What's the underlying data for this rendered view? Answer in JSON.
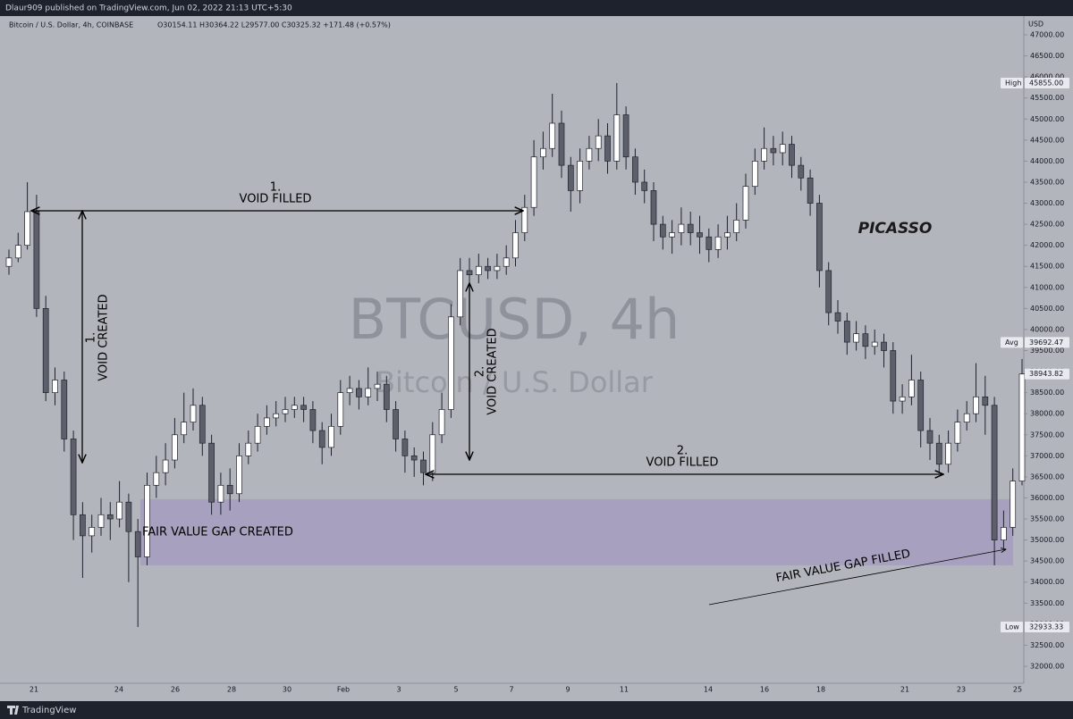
{
  "header": {
    "publisher": "Dlaur909 published on TradingView.com, Jun 02, 2022 21:13 UTC+5:30"
  },
  "footer": {
    "brand": "TradingView"
  },
  "chart_data": {
    "type": "candlestick",
    "legend": {
      "symbol": "Bitcoin / U.S. Dollar, 4h, COINBASE",
      "ohlc": "O30154.11 H30364.22 L29577.00 C30325.32 +171.48 (+0.57%)"
    },
    "watermark": {
      "title": "BTCUSD, 4h",
      "subtitle": "Bitcoin / U.S. Dollar"
    },
    "y_axis_label": "USD",
    "up_color": "#ffffff",
    "down_color": "#5d606b",
    "wick_color": "#1e222d",
    "open": [
      41500,
      41700,
      42000,
      42800,
      40500,
      38500,
      38800,
      37400,
      35600,
      35100,
      35300,
      35600,
      35500,
      35900,
      35200,
      34600,
      36300,
      36600,
      36900,
      37500,
      37800,
      38200,
      37300,
      35900,
      36300,
      36100,
      37000,
      37300,
      37700,
      37900,
      38000,
      38100,
      38200,
      38100,
      37600,
      37200,
      37700,
      38500,
      38600,
      38400,
      38600,
      38700,
      38100,
      37400,
      37000,
      36900,
      36600,
      37500,
      38100,
      40300,
      41400,
      41300,
      41500,
      41400,
      41500,
      41700,
      42300,
      42900,
      44100,
      44300,
      44900,
      43900,
      43300,
      44000,
      44300,
      44600,
      44000,
      45100,
      44100,
      43500,
      43300,
      42500,
      42200,
      42300,
      42500,
      42300,
      42200,
      41900,
      42200,
      42300,
      42600,
      43400,
      44000,
      44300,
      44200,
      44400,
      43900,
      43600,
      43000,
      41400,
      40400,
      40200,
      39700,
      39900,
      39600,
      39700,
      39500,
      38300,
      38400,
      38800,
      37600,
      37300,
      36800,
      37300,
      37800,
      38000,
      38400,
      38200,
      35000,
      35300,
      36400
    ],
    "high": [
      41900,
      42300,
      43500,
      43200,
      40800,
      39100,
      39000,
      37600,
      35900,
      35600,
      36000,
      35900,
      36400,
      36100,
      35500,
      36600,
      37000,
      37300,
      37900,
      38500,
      38600,
      38400,
      37500,
      36600,
      36700,
      37300,
      37600,
      38000,
      38200,
      38300,
      38400,
      38400,
      38400,
      38300,
      37800,
      38000,
      38800,
      38900,
      38800,
      39100,
      39000,
      38900,
      38300,
      37600,
      37200,
      37100,
      37800,
      38500,
      40600,
      41700,
      41700,
      41800,
      41700,
      41800,
      42000,
      42600,
      43200,
      44500,
      44700,
      45600,
      45200,
      44100,
      44300,
      44600,
      45000,
      44900,
      45855,
      45300,
      44300,
      43800,
      43500,
      42700,
      42600,
      42900,
      42800,
      42700,
      42400,
      42500,
      42700,
      43000,
      43700,
      44300,
      44800,
      44600,
      44700,
      44600,
      44100,
      43800,
      43200,
      41600,
      40700,
      40400,
      40200,
      40100,
      40000,
      39900,
      39700,
      38700,
      39400,
      39000,
      37900,
      37500,
      37600,
      38100,
      38300,
      39200,
      38900,
      38400,
      35700,
      36700,
      39300
    ],
    "low": [
      41300,
      41600,
      41900,
      40300,
      38300,
      38200,
      37100,
      35000,
      34100,
      34700,
      35100,
      35000,
      35300,
      34000,
      32933,
      34400,
      36000,
      36300,
      36700,
      37300,
      37600,
      37000,
      35600,
      35600,
      35700,
      35900,
      36800,
      37100,
      37500,
      37700,
      37800,
      37900,
      37800,
      37300,
      36800,
      37000,
      37500,
      38200,
      38100,
      38200,
      38300,
      37800,
      37100,
      36600,
      36500,
      36300,
      36400,
      37300,
      37900,
      40100,
      41000,
      41100,
      41200,
      41200,
      41300,
      41500,
      42100,
      42700,
      43800,
      44100,
      43600,
      42800,
      43000,
      43800,
      44000,
      43700,
      43800,
      43800,
      43200,
      43000,
      42100,
      41900,
      41800,
      42000,
      42000,
      41800,
      41600,
      41700,
      41900,
      42100,
      42400,
      43200,
      43800,
      43900,
      43900,
      43600,
      43300,
      42700,
      41000,
      40100,
      39900,
      39400,
      39500,
      39300,
      39400,
      39100,
      38000,
      38000,
      38200,
      37200,
      36900,
      36600,
      36600,
      37100,
      37600,
      37800,
      37500,
      34400,
      34800,
      35100,
      36300
    ],
    "close": [
      41700,
      42000,
      42800,
      40500,
      38500,
      38800,
      37400,
      35600,
      35100,
      35300,
      35600,
      35500,
      35900,
      35200,
      34600,
      36300,
      36600,
      36900,
      37500,
      37800,
      38200,
      37300,
      35900,
      36300,
      36100,
      37000,
      37300,
      37700,
      37900,
      38000,
      38100,
      38200,
      38100,
      37600,
      37200,
      37700,
      38500,
      38600,
      38400,
      38600,
      38700,
      38100,
      37400,
      37000,
      36900,
      36600,
      37500,
      38100,
      40300,
      41400,
      41300,
      41500,
      41400,
      41500,
      41700,
      42300,
      42900,
      44100,
      44300,
      44900,
      43900,
      43300,
      44000,
      44300,
      44600,
      44000,
      45100,
      44100,
      43500,
      43300,
      42500,
      42200,
      42300,
      42500,
      42300,
      42200,
      41900,
      42200,
      42300,
      42600,
      43400,
      44000,
      44300,
      44200,
      44400,
      43900,
      43600,
      43000,
      41400,
      40400,
      40200,
      39700,
      39900,
      39600,
      39700,
      39500,
      38300,
      38400,
      38800,
      37600,
      37300,
      36800,
      37300,
      37800,
      38000,
      38400,
      38200,
      35000,
      35300,
      36400,
      38943.82
    ],
    "x_labels": [
      "21",
      "24",
      "26",
      "28",
      "30",
      "Feb",
      "3",
      "5",
      "7",
      "9",
      "11",
      "14",
      "16",
      "18",
      "21",
      "23",
      "25"
    ],
    "ylim": [
      32000,
      47000
    ],
    "yticks": [
      {
        "value": 32000,
        "label": "32000.00"
      },
      {
        "value": 32500,
        "label": "32500.00"
      },
      {
        "value": 33000,
        "label": "33000.00"
      },
      {
        "value": 33500,
        "label": "33500.00"
      },
      {
        "value": 34000,
        "label": "34000.00"
      },
      {
        "value": 34500,
        "label": "34500.00"
      },
      {
        "value": 35000,
        "label": "35000.00"
      },
      {
        "value": 35500,
        "label": "35500.00"
      },
      {
        "value": 36000,
        "label": "36000.00"
      },
      {
        "value": 36500,
        "label": "36500.00"
      },
      {
        "value": 37000,
        "label": "37000.00"
      },
      {
        "value": 37500,
        "label": "37500.00"
      },
      {
        "value": 38000,
        "label": "38000.00"
      },
      {
        "value": 38500,
        "label": "38500.00"
      },
      {
        "value": 39000,
        "label": "39000.00"
      },
      {
        "value": 39500,
        "label": "39500.00"
      },
      {
        "value": 40000,
        "label": "40000.00"
      },
      {
        "value": 40500,
        "label": "40500.00"
      },
      {
        "value": 41000,
        "label": "41000.00"
      },
      {
        "value": 41500,
        "label": "41500.00"
      },
      {
        "value": 42000,
        "label": "42000.00"
      },
      {
        "value": 42500,
        "label": "42500.00"
      },
      {
        "value": 43000,
        "label": "43000.00"
      },
      {
        "value": 43500,
        "label": "43500.00"
      },
      {
        "value": 44000,
        "label": "44000.00"
      },
      {
        "value": 44500,
        "label": "44500.00"
      },
      {
        "value": 45000,
        "label": "45000.00"
      },
      {
        "value": 45500,
        "label": "45500.00"
      },
      {
        "value": 46000,
        "label": "46000.00"
      },
      {
        "value": 46500,
        "label": "46500.00"
      },
      {
        "value": 47000,
        "label": "47000.00"
      }
    ],
    "price_labels": [
      {
        "tag": "High",
        "value": 45855,
        "label": "45855.00"
      },
      {
        "tag": "Avg",
        "value": 39692.47,
        "label": "39692.47"
      },
      {
        "value": 38943.82,
        "label": "38943.82"
      },
      {
        "tag": "Low",
        "value": 32933.33,
        "label": "32933.33"
      }
    ],
    "zone": {
      "top": 35970,
      "bottom": 34400,
      "color": "#a59cc0"
    },
    "annotations": {
      "void1_filled_num": "1.",
      "void1_filled": "VOID FILLED",
      "void1_created_num": "1.",
      "void1_created": "VOID CREATED",
      "void2_created_num": "2.",
      "void2_created": "VOID CREATED",
      "void2_filled_num": "2.",
      "void2_filled": "VOID FILLED",
      "fvg_created": "FAIR VALUE GAP CREATED",
      "fvg_filled": "FAIR VALUE GAP FILLED",
      "signature": "PICASSO"
    }
  }
}
